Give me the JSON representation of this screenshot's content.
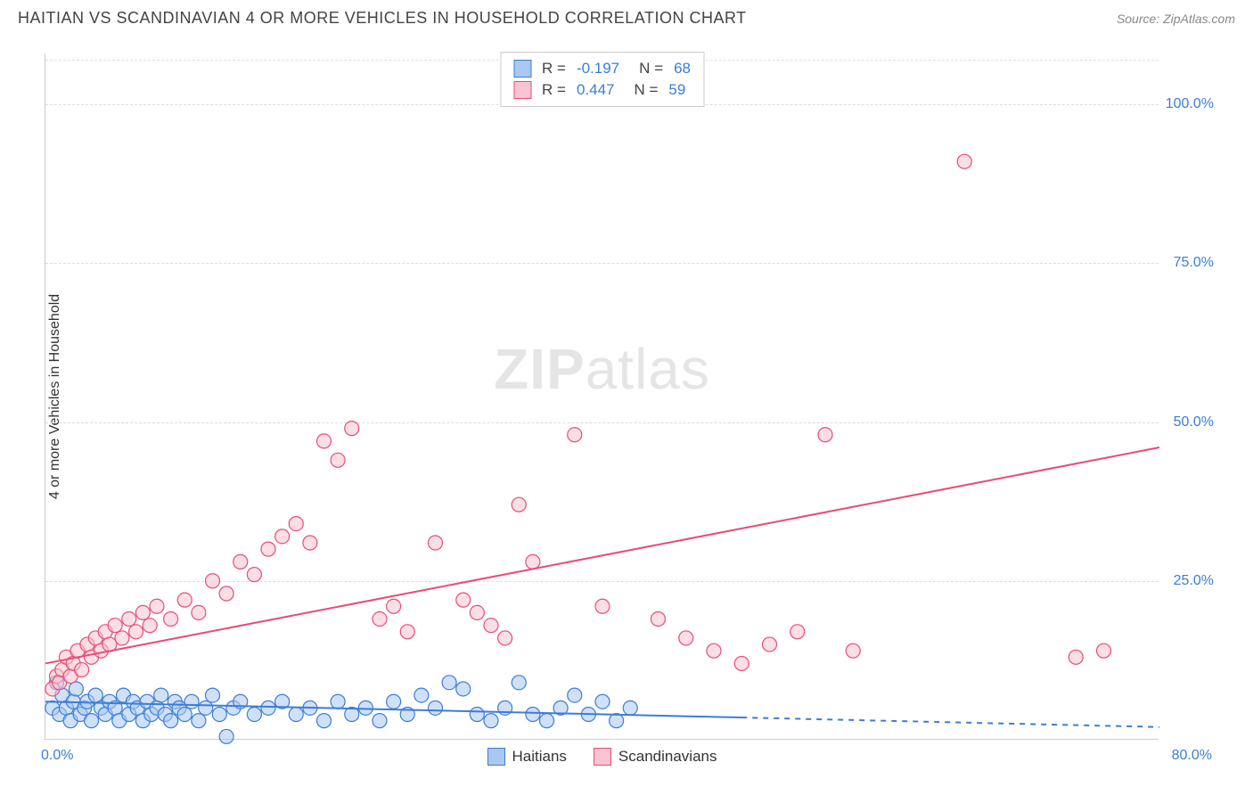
{
  "title": "HAITIAN VS SCANDINAVIAN 4 OR MORE VEHICLES IN HOUSEHOLD CORRELATION CHART",
  "source": "Source: ZipAtlas.com",
  "watermark": {
    "zip": "ZIP",
    "atlas": "atlas"
  },
  "y_axis_label": "4 or more Vehicles in Household",
  "chart": {
    "type": "scatter",
    "xlim": [
      0,
      80
    ],
    "ylim": [
      0,
      108
    ],
    "x_ticks": [
      "0.0%",
      "80.0%"
    ],
    "y_ticks": [
      {
        "v": 25,
        "label": "25.0%"
      },
      {
        "v": 50,
        "label": "50.0%"
      },
      {
        "v": 75,
        "label": "75.0%"
      },
      {
        "v": 100,
        "label": "100.0%"
      }
    ],
    "background_color": "#ffffff",
    "grid_color": "#dddddd",
    "marker_radius": 8,
    "marker_stroke_width": 1.2,
    "trend_line_width": 2,
    "series": [
      {
        "name": "Haitians",
        "fill": "#a9c7f0",
        "stroke": "#3b7dd8",
        "fill_opacity": 0.55,
        "R": "-0.197",
        "N": "68",
        "trend": {
          "x1": 0,
          "y1": 6.0,
          "x2": 50,
          "y2": 3.5,
          "dashed_x2": 80,
          "dashed_y2": 2.0
        },
        "points": [
          [
            0.5,
            5
          ],
          [
            0.8,
            9
          ],
          [
            1,
            4
          ],
          [
            1.2,
            7
          ],
          [
            1.5,
            5
          ],
          [
            1.8,
            3
          ],
          [
            2,
            6
          ],
          [
            2.2,
            8
          ],
          [
            2.5,
            4
          ],
          [
            2.8,
            5
          ],
          [
            3,
            6
          ],
          [
            3.3,
            3
          ],
          [
            3.6,
            7
          ],
          [
            4,
            5
          ],
          [
            4.3,
            4
          ],
          [
            4.6,
            6
          ],
          [
            5,
            5
          ],
          [
            5.3,
            3
          ],
          [
            5.6,
            7
          ],
          [
            6,
            4
          ],
          [
            6.3,
            6
          ],
          [
            6.6,
            5
          ],
          [
            7,
            3
          ],
          [
            7.3,
            6
          ],
          [
            7.6,
            4
          ],
          [
            8,
            5
          ],
          [
            8.3,
            7
          ],
          [
            8.6,
            4
          ],
          [
            9,
            3
          ],
          [
            9.3,
            6
          ],
          [
            9.6,
            5
          ],
          [
            10,
            4
          ],
          [
            10.5,
            6
          ],
          [
            11,
            3
          ],
          [
            11.5,
            5
          ],
          [
            12,
            7
          ],
          [
            12.5,
            4
          ],
          [
            13,
            0.5
          ],
          [
            13.5,
            5
          ],
          [
            14,
            6
          ],
          [
            15,
            4
          ],
          [
            16,
            5
          ],
          [
            17,
            6
          ],
          [
            18,
            4
          ],
          [
            19,
            5
          ],
          [
            20,
            3
          ],
          [
            21,
            6
          ],
          [
            22,
            4
          ],
          [
            23,
            5
          ],
          [
            24,
            3
          ],
          [
            25,
            6
          ],
          [
            26,
            4
          ],
          [
            27,
            7
          ],
          [
            28,
            5
          ],
          [
            29,
            9
          ],
          [
            30,
            8
          ],
          [
            31,
            4
          ],
          [
            32,
            3
          ],
          [
            33,
            5
          ],
          [
            34,
            9
          ],
          [
            35,
            4
          ],
          [
            36,
            3
          ],
          [
            37,
            5
          ],
          [
            38,
            7
          ],
          [
            39,
            4
          ],
          [
            40,
            6
          ],
          [
            41,
            3
          ],
          [
            42,
            5
          ]
        ]
      },
      {
        "name": "Scandinavians",
        "fill": "#f7c5d0",
        "stroke": "#e94b77",
        "fill_opacity": 0.55,
        "R": "0.447",
        "N": "59",
        "trend": {
          "x1": 0,
          "y1": 12,
          "x2": 80,
          "y2": 46
        },
        "points": [
          [
            0.5,
            8
          ],
          [
            0.8,
            10
          ],
          [
            1,
            9
          ],
          [
            1.2,
            11
          ],
          [
            1.5,
            13
          ],
          [
            1.8,
            10
          ],
          [
            2,
            12
          ],
          [
            2.3,
            14
          ],
          [
            2.6,
            11
          ],
          [
            3,
            15
          ],
          [
            3.3,
            13
          ],
          [
            3.6,
            16
          ],
          [
            4,
            14
          ],
          [
            4.3,
            17
          ],
          [
            4.6,
            15
          ],
          [
            5,
            18
          ],
          [
            5.5,
            16
          ],
          [
            6,
            19
          ],
          [
            6.5,
            17
          ],
          [
            7,
            20
          ],
          [
            7.5,
            18
          ],
          [
            8,
            21
          ],
          [
            9,
            19
          ],
          [
            10,
            22
          ],
          [
            11,
            20
          ],
          [
            12,
            25
          ],
          [
            13,
            23
          ],
          [
            14,
            28
          ],
          [
            15,
            26
          ],
          [
            16,
            30
          ],
          [
            17,
            32
          ],
          [
            18,
            34
          ],
          [
            19,
            31
          ],
          [
            20,
            47
          ],
          [
            21,
            44
          ],
          [
            22,
            49
          ],
          [
            24,
            19
          ],
          [
            25,
            21
          ],
          [
            26,
            17
          ],
          [
            28,
            31
          ],
          [
            30,
            22
          ],
          [
            31,
            20
          ],
          [
            32,
            18
          ],
          [
            33,
            16
          ],
          [
            34,
            37
          ],
          [
            35,
            28
          ],
          [
            38,
            48
          ],
          [
            40,
            21
          ],
          [
            44,
            19
          ],
          [
            46,
            16
          ],
          [
            48,
            14
          ],
          [
            54,
            17
          ],
          [
            56,
            48
          ],
          [
            58,
            14
          ],
          [
            66,
            91
          ],
          [
            74,
            13
          ],
          [
            76,
            14
          ],
          [
            52,
            15
          ],
          [
            50,
            12
          ]
        ]
      }
    ]
  },
  "stats_labels": {
    "R": "R =",
    "N": "N ="
  },
  "legend_labels": [
    "Haitians",
    "Scandinavians"
  ]
}
